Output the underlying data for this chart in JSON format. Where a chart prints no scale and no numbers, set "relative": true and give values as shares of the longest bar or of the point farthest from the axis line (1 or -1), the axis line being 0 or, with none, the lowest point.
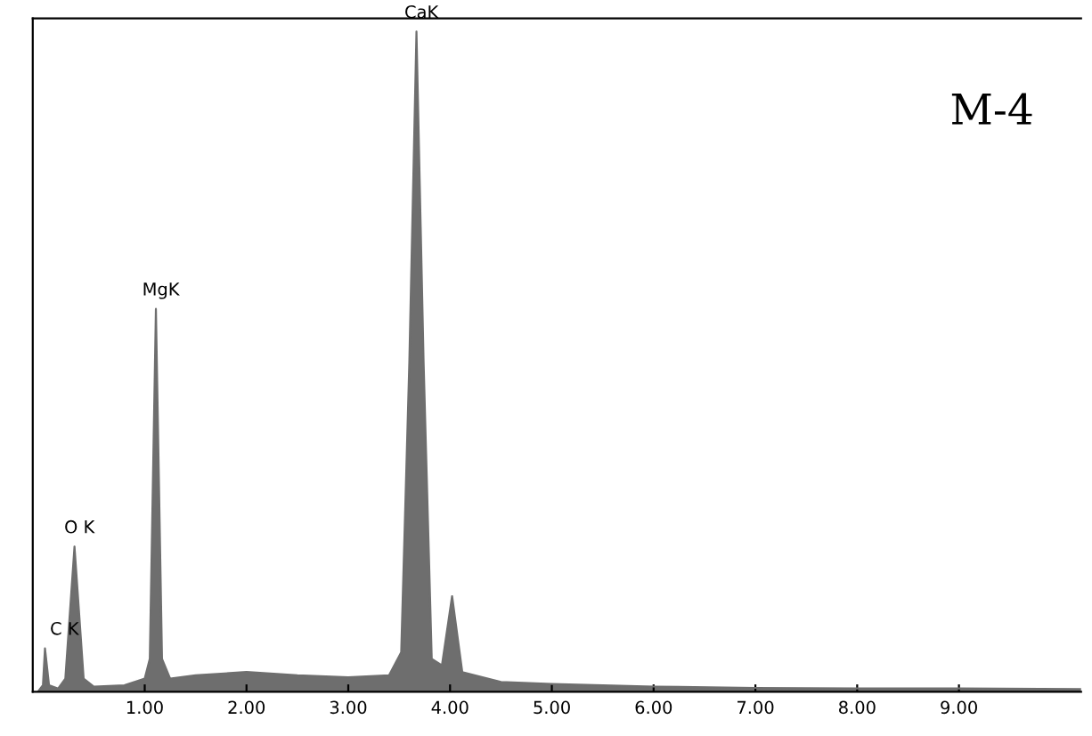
{
  "chart_data": {
    "type": "area",
    "title": "M-4",
    "relative": true,
    "color": "#6e6e6e",
    "x": [
      -0.05,
      0.0,
      0.02,
      0.06,
      0.15,
      0.22,
      0.31,
      0.4,
      0.5,
      0.8,
      1.0,
      1.05,
      1.11,
      1.17,
      1.25,
      1.5,
      2.0,
      2.5,
      3.0,
      3.4,
      3.52,
      3.6,
      3.67,
      3.74,
      3.82,
      3.92,
      4.02,
      4.12,
      4.5,
      5.0,
      6.0,
      7.0,
      8.0,
      9.0,
      10.2
    ],
    "values": [
      0,
      0.01,
      0.066,
      0.01,
      0.005,
      0.02,
      0.22,
      0.02,
      0.008,
      0.01,
      0.02,
      0.05,
      0.58,
      0.05,
      0.02,
      0.025,
      0.03,
      0.025,
      0.022,
      0.025,
      0.06,
      0.5,
      1.0,
      0.5,
      0.05,
      0.04,
      0.145,
      0.03,
      0.015,
      0.012,
      0.008,
      0.006,
      0.005,
      0.005,
      0.004
    ],
    "xlim": [
      -0.1,
      10.2
    ],
    "xticks": [
      {
        "value": 1,
        "label": "1.00"
      },
      {
        "value": 2,
        "label": "2.00"
      },
      {
        "value": 3,
        "label": "3.00"
      },
      {
        "value": 4,
        "label": "4.00"
      },
      {
        "value": 5,
        "label": "5.00"
      },
      {
        "value": 6,
        "label": "6.00"
      },
      {
        "value": 7,
        "label": "7.00"
      },
      {
        "value": 8,
        "label": "8.00"
      },
      {
        "value": 9,
        "label": "9.00"
      }
    ],
    "tick_labels": "x",
    "grid": false,
    "annotations": [
      {
        "text": "C K",
        "x": 0.02,
        "y": 0.066
      },
      {
        "text": "O K",
        "x": 0.31,
        "y": 0.22
      },
      {
        "text": "MgK",
        "x": 1.11,
        "y": 0.58
      },
      {
        "text": "CaK",
        "x": 3.67,
        "y": 1.0
      }
    ]
  }
}
